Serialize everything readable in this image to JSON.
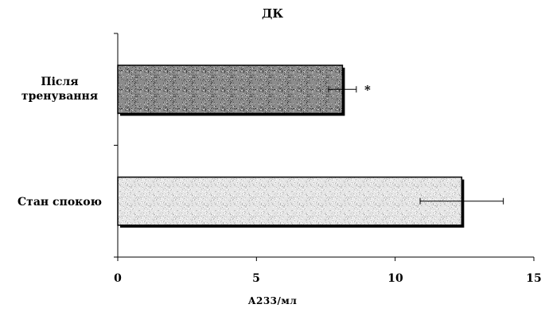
{
  "chart_data": {
    "type": "bar",
    "orientation": "horizontal",
    "title": "ДК",
    "xlabel": "А233/мл",
    "ylabel": "",
    "xlim": [
      0,
      15
    ],
    "xticks": [
      0,
      5,
      10,
      15
    ],
    "categories": [
      "Після тренування",
      "Стан спокою"
    ],
    "category_label_lines": [
      [
        "Після",
        "тренування"
      ],
      [
        "Стан спокою"
      ]
    ],
    "values": [
      8.1,
      12.4
    ],
    "errors": [
      0.5,
      1.5
    ],
    "annotations": [
      {
        "category": "Після тренування",
        "text": "*"
      }
    ],
    "grid": false,
    "legend": "none",
    "colors": {
      "bar_top": "#8c8c8c",
      "bar_bottom": "#e6e6e6",
      "edge": "#000000"
    }
  }
}
